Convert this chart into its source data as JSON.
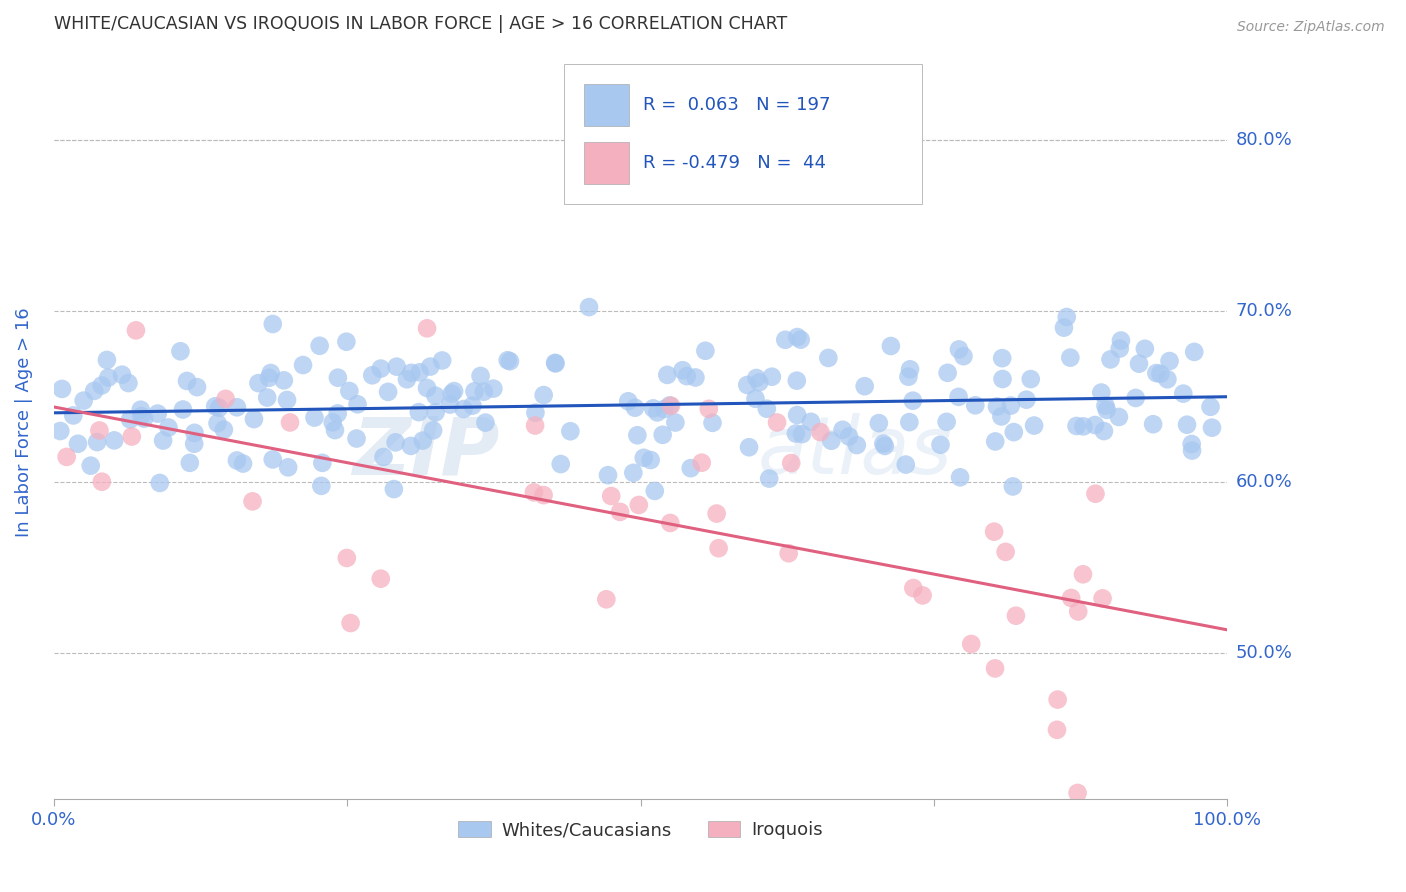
{
  "title": "WHITE/CAUCASIAN VS IROQUOIS IN LABOR FORCE | AGE > 16 CORRELATION CHART",
  "source": "Source: ZipAtlas.com",
  "ylabel": "In Labor Force | Age > 16",
  "ytick_values": [
    0.5,
    0.6,
    0.7,
    0.8
  ],
  "ytick_labels": [
    "50.0%",
    "60.0%",
    "70.0%",
    "80.0%"
  ],
  "xlim": [
    0.0,
    1.0
  ],
  "ylim": [
    0.415,
    0.855
  ],
  "blue_color": "#A8C8F0",
  "blue_line_color": "#2255BB",
  "pink_color": "#F5B0C0",
  "pink_line_color": "#E06080",
  "blue_R": 0.063,
  "blue_N": 197,
  "pink_R": -0.479,
  "pink_N": 44,
  "legend_label_blue": "Whites/Caucasians",
  "legend_label_pink": "Iroquois",
  "watermark_zip": "ZIP",
  "watermark_atlas": "atlas",
  "background_color": "#FFFFFF",
  "grid_color": "#BBBBBB",
  "title_color": "#333333",
  "axis_label_color": "#3366CC",
  "seed": 42
}
